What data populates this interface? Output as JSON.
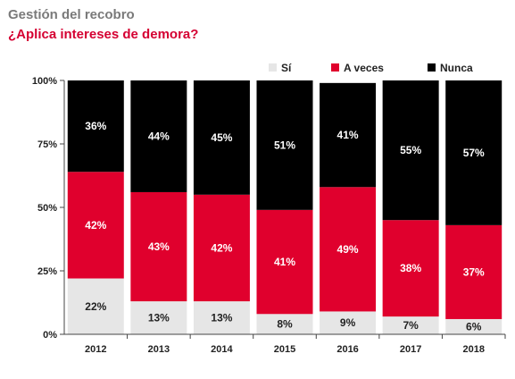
{
  "title": "Gestión del recobro",
  "subtitle": "¿Aplica intereses de demora?",
  "colors": {
    "si": "#e6e6e6",
    "aveces": "#e0002d",
    "nunca": "#000000",
    "title": "#7a7a7a",
    "subtitle": "#d50032"
  },
  "chart_data": {
    "type": "bar",
    "stacked": true,
    "title": "Gestión del recobro",
    "subtitle": "¿Aplica intereses de demora?",
    "categories": [
      "2012",
      "2013",
      "2014",
      "2015",
      "2016",
      "2017",
      "2018"
    ],
    "series": [
      {
        "name": "Sí",
        "values": [
          22,
          13,
          13,
          8,
          9,
          7,
          6
        ]
      },
      {
        "name": "A veces",
        "values": [
          42,
          43,
          42,
          41,
          49,
          38,
          37
        ]
      },
      {
        "name": "Nunca",
        "values": [
          36,
          44,
          45,
          51,
          41,
          55,
          57
        ]
      }
    ],
    "yticks": [
      "0%",
      "25%",
      "50%",
      "75%",
      "100%"
    ],
    "ylim": [
      0,
      100
    ],
    "legend_position": "top-right",
    "grid": false
  }
}
